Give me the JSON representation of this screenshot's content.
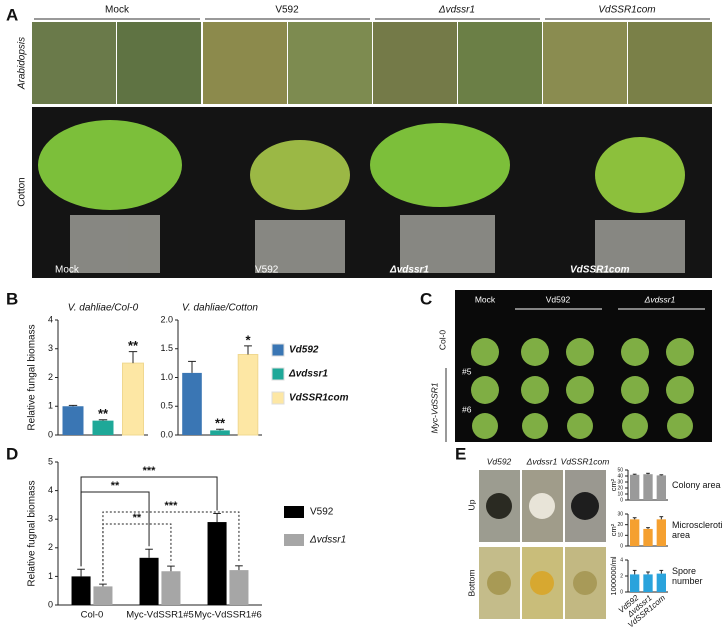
{
  "panel_letters": [
    "A",
    "B",
    "C",
    "D",
    "E"
  ],
  "panel_a": {
    "headers": [
      "Mock",
      "V592",
      "Δvdssr1",
      "VdSSR1com"
    ],
    "rows": [
      "Arabidopsis",
      "Cotton"
    ],
    "cotton_labels": [
      "Mock",
      "V592",
      "Δvdssr1",
      "VdSSR1com"
    ]
  },
  "panel_c": {
    "headers": [
      "Mock",
      "Vd592",
      "Δvdssr1"
    ],
    "rows": [
      "Col-0",
      "#5",
      "#6"
    ],
    "group": "Myc-VdSSR1"
  },
  "panel_e": {
    "headers": [
      "Vd592",
      "Δvdssr1",
      "VdSSR1com"
    ],
    "rows": [
      "Up",
      "Bottom"
    ]
  },
  "chart_data": [
    {
      "type": "bar",
      "title": "V. dahliae/Col-0",
      "y_label": "Relative fungal biomass",
      "categories": [
        "Vd592",
        "Δvdssr1",
        "VdSSR1com"
      ],
      "values": [
        1.0,
        0.5,
        2.5
      ],
      "errors": [
        0.03,
        0.03,
        0.4
      ],
      "colors": [
        "#3a76b4",
        "#1ea898",
        "#fde7a4"
      ],
      "annotations": [
        null,
        "**",
        "**"
      ],
      "ylim": [
        0,
        4
      ],
      "yticks": [
        0,
        1,
        2,
        3,
        4
      ]
    },
    {
      "type": "bar",
      "title": "V. dahliae/Cotton",
      "categories": [
        null,
        null,
        null
      ],
      "values": [
        1.08,
        0.08,
        1.4
      ],
      "errors": [
        0.2,
        0.02,
        0.15
      ],
      "colors": [
        "#3a76b4",
        "#1ea898",
        "#fde7a4"
      ],
      "annotations": [
        null,
        "**",
        "*"
      ],
      "ylim": [
        0,
        2
      ],
      "yticks": [
        {
          "value": 0,
          "label": "0.0"
        },
        0.5,
        {
          "value": 1,
          "label": "1.0"
        },
        1.5,
        {
          "value": 2,
          "label": "2.0"
        }
      ]
    },
    {
      "type": "bar",
      "y_label": "Relative fugnal biomass",
      "categories": [
        "Col-0",
        "Myc-VdSSR1#5",
        "Myc-VdSSR1#6"
      ],
      "series": [
        {
          "name": "V592",
          "color": "#000000",
          "values": [
            1.0,
            1.65,
            2.9
          ],
          "errors": [
            0.25,
            0.3,
            0.3
          ]
        },
        {
          "name": "Δvdssr1",
          "color": "#a6a6a6",
          "values": [
            0.65,
            1.18,
            1.22
          ],
          "errors": [
            0.08,
            0.18,
            0.15
          ]
        }
      ],
      "significance": [
        "**",
        "***",
        "**",
        "***"
      ],
      "ylim": [
        0,
        5
      ],
      "yticks": [
        0,
        1,
        2,
        3,
        4,
        5
      ]
    },
    {
      "type": "bar",
      "y_label": "cm²",
      "side_label": "Colony area",
      "categories": [
        null,
        null,
        null
      ],
      "values": [
        42,
        43,
        41
      ],
      "errors": [
        1,
        1.5,
        1
      ],
      "colors": [
        "#9a9a9a",
        "#9a9a9a",
        "#9a9a9a"
      ],
      "ylim": [
        0,
        50
      ],
      "yticks": [
        0,
        10,
        20,
        30,
        40,
        50
      ]
    },
    {
      "type": "bar",
      "y_label": "cm²",
      "side_label": "Microsclerotia area",
      "categories": [
        null,
        null,
        null
      ],
      "values": [
        25,
        16,
        25
      ],
      "errors": [
        1.5,
        1.2,
        2.5
      ],
      "colors": [
        "#f5a030",
        "#f5a030",
        "#f5a030"
      ],
      "ylim": [
        0,
        30
      ],
      "yticks": [
        0,
        10,
        20,
        30
      ]
    },
    {
      "type": "bar",
      "y_label": "1000000/ml",
      "side_label": "Spore number",
      "categories": [
        "Vd592",
        "Δvdssr1",
        "VdSSR1com"
      ],
      "values": [
        2.2,
        2.2,
        2.3
      ],
      "errors": [
        0.5,
        0.3,
        0.4
      ],
      "colors": [
        "#2aa3dc",
        "#2aa3dc",
        "#2aa3dc"
      ],
      "ylim": [
        0,
        4
      ],
      "yticks": [
        0,
        2,
        4
      ]
    }
  ]
}
